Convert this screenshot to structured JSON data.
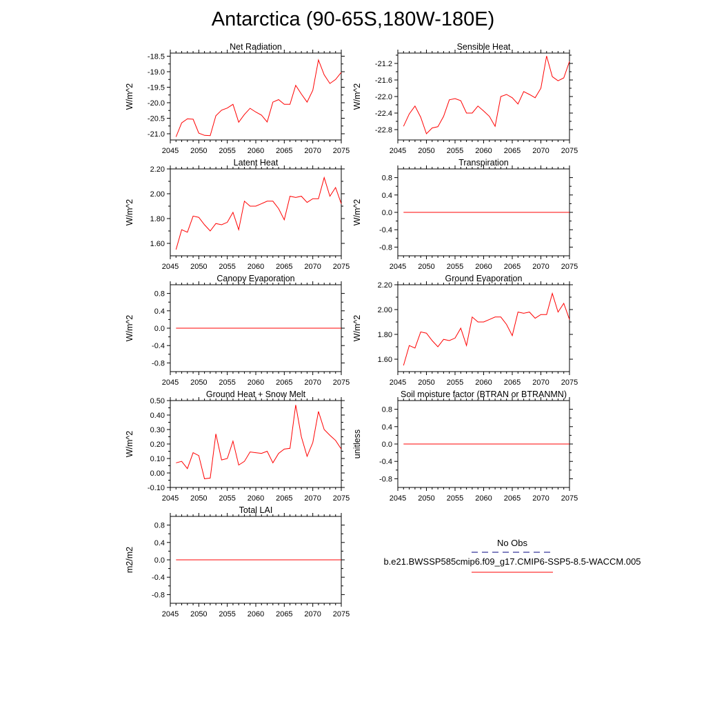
{
  "title": "Antarctica (90-65S,180W-180E)",
  "colors": {
    "series": "#ff0000",
    "obs": "#000080",
    "axis": "#000000"
  },
  "legend": {
    "obs_label": "No Obs",
    "model_label": "b.e21.BWSSP585cmip6.f09_g17.CMIP6-SSP5-8.5-WACCM.005"
  },
  "chart_data": [
    {
      "type": "line",
      "title": "Net Radiation",
      "ylabel": "W/m^2",
      "xlim": [
        2045,
        2075
      ],
      "ylim": [
        -21.2,
        -18.4
      ],
      "yticks": [
        -21.0,
        -20.5,
        -20.0,
        -19.5,
        -19.0,
        -18.5
      ],
      "yticklabels": [
        "-21.0",
        "-20.5",
        "-20.0",
        "-19.5",
        "-19.0",
        "-18.5"
      ],
      "xticks": [
        2045,
        2050,
        2055,
        2060,
        2065,
        2070,
        2075
      ],
      "xticklabels": [
        "2045",
        "2050",
        "2055",
        "2060",
        "2065",
        "2070",
        "2075"
      ],
      "x": [
        2046,
        2047,
        2048,
        2049,
        2050,
        2051,
        2052,
        2053,
        2054,
        2055,
        2056,
        2057,
        2058,
        2059,
        2060,
        2061,
        2062,
        2063,
        2064,
        2065,
        2066,
        2067,
        2068,
        2069,
        2070,
        2071,
        2072,
        2073,
        2074,
        2075
      ],
      "y": [
        -21.1,
        -20.65,
        -20.52,
        -20.53,
        -20.98,
        -21.05,
        -21.06,
        -20.42,
        -20.24,
        -20.17,
        -20.05,
        -20.63,
        -20.38,
        -20.18,
        -20.3,
        -20.4,
        -20.62,
        -19.98,
        -19.9,
        -20.05,
        -20.05,
        -19.44,
        -19.72,
        -19.98,
        -19.6,
        -18.62,
        -19.1,
        -19.38,
        -19.25,
        -19.02
      ]
    },
    {
      "type": "line",
      "title": "Sensible Heat",
      "ylabel": "W/m^2",
      "xlim": [
        2045,
        2075
      ],
      "ylim": [
        -23.05,
        -20.95
      ],
      "yticks": [
        -22.8,
        -22.4,
        -22.0,
        -21.6,
        -21.2
      ],
      "yticklabels": [
        "-22.8",
        "-22.4",
        "-22.0",
        "-21.6",
        "-21.2"
      ],
      "xticks": [
        2045,
        2050,
        2055,
        2060,
        2065,
        2070,
        2075
      ],
      "xticklabels": [
        "2045",
        "2050",
        "2055",
        "2060",
        "2065",
        "2070",
        "2075"
      ],
      "x": [
        2046,
        2047,
        2048,
        2049,
        2050,
        2051,
        2052,
        2053,
        2054,
        2055,
        2056,
        2057,
        2058,
        2059,
        2060,
        2061,
        2062,
        2063,
        2064,
        2065,
        2066,
        2067,
        2068,
        2069,
        2070,
        2071,
        2072,
        2073,
        2074,
        2075
      ],
      "y": [
        -22.72,
        -22.42,
        -22.23,
        -22.5,
        -22.9,
        -22.76,
        -22.73,
        -22.48,
        -22.08,
        -22.05,
        -22.1,
        -22.4,
        -22.4,
        -22.23,
        -22.35,
        -22.48,
        -22.72,
        -22.0,
        -21.95,
        -22.03,
        -22.18,
        -21.88,
        -21.95,
        -22.03,
        -21.8,
        -21.02,
        -21.52,
        -21.62,
        -21.55,
        -21.15
      ]
    },
    {
      "type": "line",
      "title": "Latent Heat",
      "ylabel": "W/m^2",
      "xlim": [
        2045,
        2075
      ],
      "ylim": [
        1.5,
        2.2
      ],
      "yticks": [
        1.6,
        1.8,
        2.0,
        2.2
      ],
      "yticklabels": [
        "1.60",
        "1.80",
        "2.00",
        "2.20"
      ],
      "xticks": [
        2045,
        2050,
        2055,
        2060,
        2065,
        2070,
        2075
      ],
      "xticklabels": [
        "2045",
        "2050",
        "2055",
        "2060",
        "2065",
        "2070",
        "2075"
      ],
      "x": [
        2046,
        2047,
        2048,
        2049,
        2050,
        2051,
        2052,
        2053,
        2054,
        2055,
        2056,
        2057,
        2058,
        2059,
        2060,
        2061,
        2062,
        2063,
        2064,
        2065,
        2066,
        2067,
        2068,
        2069,
        2070,
        2071,
        2072,
        2073,
        2074,
        2075
      ],
      "y": [
        1.55,
        1.71,
        1.69,
        1.82,
        1.81,
        1.75,
        1.7,
        1.76,
        1.75,
        1.77,
        1.85,
        1.71,
        1.94,
        1.9,
        1.9,
        1.92,
        1.94,
        1.94,
        1.88,
        1.79,
        1.98,
        1.97,
        1.98,
        1.93,
        1.96,
        1.96,
        2.13,
        1.98,
        2.05,
        1.92
      ]
    },
    {
      "type": "line",
      "title": "Transpiration",
      "ylabel": "W/m^2",
      "xlim": [
        2045,
        2075
      ],
      "ylim": [
        -1.0,
        1.0
      ],
      "yticks": [
        -0.8,
        -0.4,
        0.0,
        0.4,
        0.8
      ],
      "yticklabels": [
        "-0.8",
        "-0.4",
        "0.0",
        "0.4",
        "0.8"
      ],
      "xticks": [
        2045,
        2050,
        2055,
        2060,
        2065,
        2070,
        2075
      ],
      "xticklabels": [
        "2045",
        "2050",
        "2055",
        "2060",
        "2065",
        "2070",
        "2075"
      ],
      "x": [
        2046,
        2075
      ],
      "y": [
        0,
        0
      ]
    },
    {
      "type": "line",
      "title": "Canopy Evaporation",
      "ylabel": "W/m^2",
      "xlim": [
        2045,
        2075
      ],
      "ylim": [
        -1.0,
        1.0
      ],
      "yticks": [
        -0.8,
        -0.4,
        0.0,
        0.4,
        0.8
      ],
      "yticklabels": [
        "-0.8",
        "-0.4",
        "0.0",
        "0.4",
        "0.8"
      ],
      "xticks": [
        2045,
        2050,
        2055,
        2060,
        2065,
        2070,
        2075
      ],
      "xticklabels": [
        "2045",
        "2050",
        "2055",
        "2060",
        "2065",
        "2070",
        "2075"
      ],
      "x": [
        2046,
        2075
      ],
      "y": [
        0,
        0
      ]
    },
    {
      "type": "line",
      "title": "Ground Evaporation",
      "ylabel": "W/m^2",
      "xlim": [
        2045,
        2075
      ],
      "ylim": [
        1.5,
        2.2
      ],
      "yticks": [
        1.6,
        1.8,
        2.0,
        2.2
      ],
      "yticklabels": [
        "1.60",
        "1.80",
        "2.00",
        "2.20"
      ],
      "xticks": [
        2045,
        2050,
        2055,
        2060,
        2065,
        2070,
        2075
      ],
      "xticklabels": [
        "2045",
        "2050",
        "2055",
        "2060",
        "2065",
        "2070",
        "2075"
      ],
      "x": [
        2046,
        2047,
        2048,
        2049,
        2050,
        2051,
        2052,
        2053,
        2054,
        2055,
        2056,
        2057,
        2058,
        2059,
        2060,
        2061,
        2062,
        2063,
        2064,
        2065,
        2066,
        2067,
        2068,
        2069,
        2070,
        2071,
        2072,
        2073,
        2074,
        2075
      ],
      "y": [
        1.55,
        1.71,
        1.69,
        1.82,
        1.81,
        1.75,
        1.7,
        1.76,
        1.75,
        1.77,
        1.85,
        1.71,
        1.94,
        1.9,
        1.9,
        1.92,
        1.94,
        1.94,
        1.88,
        1.79,
        1.98,
        1.97,
        1.98,
        1.93,
        1.96,
        1.96,
        2.13,
        1.98,
        2.05,
        1.92
      ]
    },
    {
      "type": "line",
      "title": "Ground Heat + Snow Melt",
      "ylabel": "W/m^2",
      "xlim": [
        2045,
        2075
      ],
      "ylim": [
        -0.1,
        0.5
      ],
      "yticks": [
        -0.1,
        0.0,
        0.1,
        0.2,
        0.3,
        0.4,
        0.5
      ],
      "yticklabels": [
        "-0.10",
        "0.00",
        "0.10",
        "0.20",
        "0.30",
        "0.40",
        "0.50"
      ],
      "xticks": [
        2045,
        2050,
        2055,
        2060,
        2065,
        2070,
        2075
      ],
      "xticklabels": [
        "2045",
        "2050",
        "2055",
        "2060",
        "2065",
        "2070",
        "2075"
      ],
      "x": [
        2046,
        2047,
        2048,
        2049,
        2050,
        2051,
        2052,
        2053,
        2054,
        2055,
        2056,
        2057,
        2058,
        2059,
        2060,
        2061,
        2062,
        2063,
        2064,
        2065,
        2066,
        2067,
        2068,
        2069,
        2070,
        2071,
        2072,
        2073,
        2074,
        2075
      ],
      "y": [
        0.07,
        0.08,
        0.03,
        0.14,
        0.12,
        -0.04,
        -0.035,
        0.27,
        0.09,
        0.1,
        0.22,
        0.055,
        0.08,
        0.145,
        0.14,
        0.135,
        0.15,
        0.07,
        0.135,
        0.165,
        0.17,
        0.47,
        0.25,
        0.115,
        0.21,
        0.425,
        0.3,
        0.26,
        0.225,
        0.165
      ]
    },
    {
      "type": "line",
      "title": "Soil moisture factor (BTRAN or BTRANMN)",
      "ylabel": "unitless",
      "xlim": [
        2045,
        2075
      ],
      "ylim": [
        -1.0,
        1.0
      ],
      "yticks": [
        -0.8,
        -0.4,
        0.0,
        0.4,
        0.8
      ],
      "yticklabels": [
        "-0.8",
        "-0.4",
        "0.0",
        "0.4",
        "0.8"
      ],
      "xticks": [
        2045,
        2050,
        2055,
        2060,
        2065,
        2070,
        2075
      ],
      "xticklabels": [
        "2045",
        "2050",
        "2055",
        "2060",
        "2065",
        "2070",
        "2075"
      ],
      "x": [
        2046,
        2075
      ],
      "y": [
        0,
        0
      ]
    },
    {
      "type": "line",
      "title": "Total LAI",
      "ylabel": "m2/m2",
      "xlim": [
        2045,
        2075
      ],
      "ylim": [
        -1.0,
        1.0
      ],
      "yticks": [
        -0.8,
        -0.4,
        0.0,
        0.4,
        0.8
      ],
      "yticklabels": [
        "-0.8",
        "-0.4",
        "0.0",
        "0.4",
        "0.8"
      ],
      "xticks": [
        2045,
        2050,
        2055,
        2060,
        2065,
        2070,
        2075
      ],
      "xticklabels": [
        "2045",
        "2050",
        "2055",
        "2060",
        "2065",
        "2070",
        "2075"
      ],
      "x": [
        2046,
        2075
      ],
      "y": [
        0,
        0
      ]
    }
  ]
}
